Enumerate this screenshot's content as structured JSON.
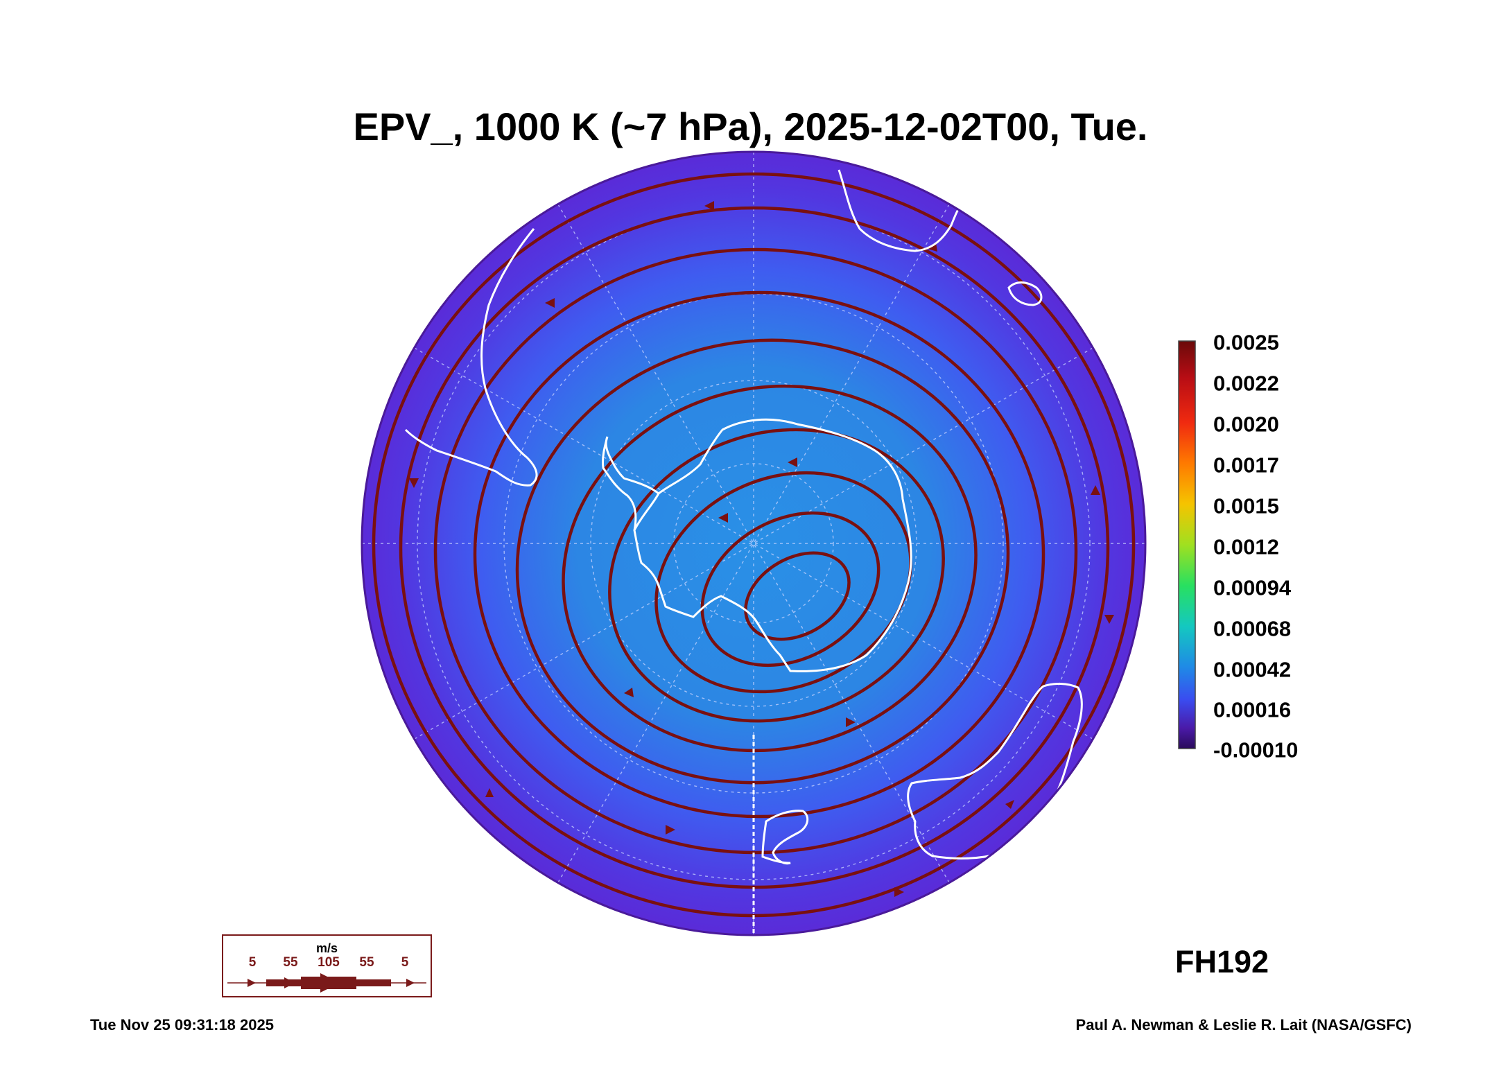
{
  "title": "EPV_, 1000 K (~7 hPa), 2025-12-02T00, Tue.",
  "colorbar": {
    "labels": [
      "0.0025",
      "0.0022",
      "0.0020",
      "0.0017",
      "0.0015",
      "0.0012",
      "0.00094",
      "0.00068",
      "0.00042",
      "0.00016",
      "-0.00010"
    ],
    "colors": [
      "#6a0a0a",
      "#b80d14",
      "#f02a10",
      "#ff7a00",
      "#f5c400",
      "#a0e020",
      "#28e060",
      "#14c8c0",
      "#1f8ae6",
      "#3a4cf0",
      "#4a1aa8",
      "#2a0a5a"
    ]
  },
  "map": {
    "projection": "south-polar-stereographic",
    "field_colors": {
      "outer": "#5a2bd8",
      "mid": "#3f5cf0",
      "inner": "#2a90e6"
    },
    "coastline_color": "#ffffff",
    "streamline_color": "#7a1010",
    "grid_color": "#c8d4ff"
  },
  "forecast_hour": "FH192",
  "wind_legend": {
    "unit": "m/s",
    "values": [
      "5",
      "55",
      "105",
      "55",
      "5"
    ]
  },
  "footer": {
    "timestamp": "Tue Nov 25 09:31:18 2025",
    "credit": "Paul A. Newman & Leslie R. Lait (NASA/GSFC)"
  }
}
